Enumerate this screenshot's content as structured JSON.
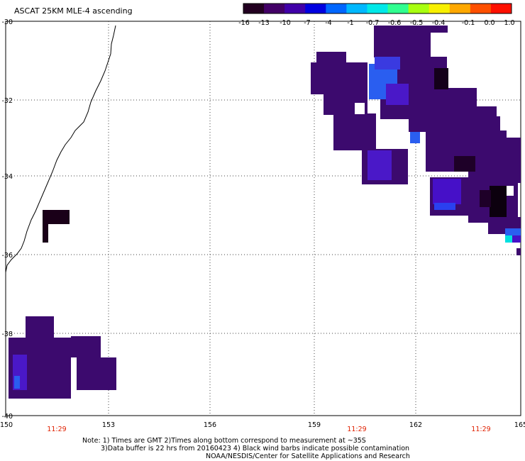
{
  "title": "ASCAT 25KM MLE-4 ascending",
  "colorbar": {
    "labels": [
      "-16",
      "-13",
      "-10",
      "-7",
      "-4",
      "-1",
      "-0.7",
      "-0.6",
      "-0.5",
      "-0.4",
      "-0.1",
      "0.0",
      "1.0"
    ],
    "colors": [
      "#220020",
      "#420066",
      "#4000a8",
      "#0000e0",
      "#0066ff",
      "#00b8ff",
      "#00e8e8",
      "#30ff90",
      "#a8ff10",
      "#f8f000",
      "#ffa800",
      "#ff5000",
      "#ff1000"
    ]
  },
  "axes": {
    "x_ticks": [
      "150",
      "153",
      "156",
      "159",
      "162",
      "165"
    ],
    "y_ticks": [
      "-30",
      "-32",
      "-34",
      "-36",
      "-38",
      "-40"
    ]
  },
  "time_labels": [
    "11:29",
    "11:29",
    "11:29"
  ],
  "time_label_color": "#e02000",
  "notes": [
    "Note: 1) Times are GMT 2)Times along bottom correspond to measurement at ~35S",
    "3)Data buffer is 22 hrs from 20160423 4) Black wind barbs indicate possible contamination",
    "NOAA/NESDIS/Center for Satellite Applications and Research"
  ],
  "palette": {
    "dark_purple": "#3c0a6e",
    "blue_purple": "#4610c8",
    "bright_blue": "#1e6cf0",
    "near_black": "#100010",
    "cyan": "#00e0e0"
  }
}
